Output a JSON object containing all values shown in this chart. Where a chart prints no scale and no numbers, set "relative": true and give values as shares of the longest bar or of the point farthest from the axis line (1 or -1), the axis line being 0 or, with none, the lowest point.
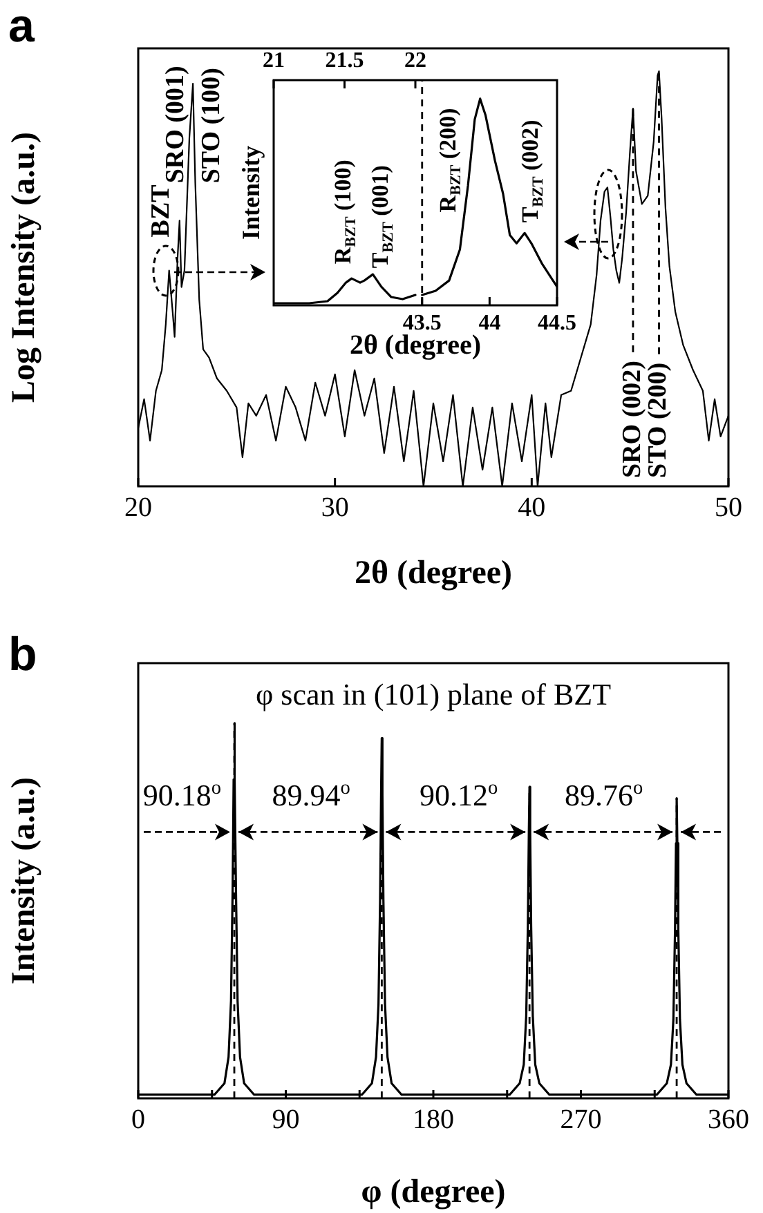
{
  "chart_data": [
    {
      "type": "line",
      "title": "a",
      "xlabel": "2θ (degree)",
      "ylabel": "Log Intensity (a.u.)",
      "relative": true,
      "marker": "none",
      "xlim": [
        20,
        50
      ],
      "xticks": [
        20,
        30,
        40,
        50
      ],
      "series": [
        {
          "color": "#000000",
          "x": [
            20.0,
            20.3,
            20.6,
            20.9,
            21.2,
            21.4,
            21.57,
            21.75,
            21.85,
            22.0,
            22.1,
            22.2,
            22.35,
            22.6,
            22.78,
            22.9,
            23.1,
            23.3,
            23.6,
            24.0,
            24.5,
            25.0,
            25.3,
            25.6,
            26.0,
            26.5,
            27.0,
            27.5,
            28.0,
            28.5,
            29.0,
            29.5,
            30.0,
            30.5,
            31.0,
            31.5,
            32.0,
            32.5,
            33.0,
            33.5,
            34.0,
            34.5,
            35.0,
            35.5,
            36.0,
            36.5,
            37.0,
            37.5,
            38.0,
            38.5,
            39.0,
            39.5,
            40.0,
            40.3,
            40.7,
            41.0,
            41.5,
            42.0,
            42.5,
            43.0,
            43.3,
            43.5,
            43.7,
            43.85,
            44.0,
            44.15,
            44.3,
            44.45,
            44.6,
            44.8,
            45.0,
            45.15,
            45.3,
            45.6,
            45.9,
            46.2,
            46.4,
            46.47,
            46.6,
            46.8,
            47.0,
            47.3,
            47.7,
            48.2,
            48.7,
            49.0,
            49.3,
            49.6,
            50.0
          ],
          "values": [
            0.14,
            0.21,
            0.11,
            0.23,
            0.28,
            0.39,
            0.52,
            0.42,
            0.36,
            0.55,
            0.64,
            0.48,
            0.52,
            0.84,
            0.97,
            0.73,
            0.45,
            0.33,
            0.31,
            0.26,
            0.23,
            0.19,
            0.07,
            0.2,
            0.17,
            0.22,
            0.11,
            0.24,
            0.19,
            0.11,
            0.25,
            0.17,
            0.27,
            0.12,
            0.28,
            0.17,
            0.26,
            0.08,
            0.24,
            0.06,
            0.23,
            0,
            0.2,
            0.06,
            0.22,
            0,
            0.19,
            0.04,
            0.19,
            0,
            0.2,
            0.06,
            0.22,
            0,
            0.2,
            0.07,
            0.22,
            0.23,
            0.31,
            0.39,
            0.51,
            0.64,
            0.71,
            0.72,
            0.65,
            0.57,
            0.52,
            0.49,
            0.55,
            0.66,
            0.81,
            0.91,
            0.76,
            0.68,
            0.7,
            0.83,
            0.99,
            1,
            0.89,
            0.67,
            0.53,
            0.42,
            0.34,
            0.28,
            0.23,
            0.11,
            0.21,
            0.12,
            0.17
          ]
        }
      ],
      "ref_lines": [
        {
          "axis": "x",
          "value": 45.15,
          "line_style": "dashed"
        },
        {
          "axis": "x",
          "value": 46.47,
          "line_style": "dashed"
        }
      ],
      "annotations": [
        "BZT",
        "SRO (001)",
        "STO (100)",
        "SRO (002)",
        "STO (200)"
      ]
    },
    {
      "type": "line",
      "xlabel": "2θ (degree)",
      "ylabel": "Intensity",
      "relative": true,
      "marker": "none",
      "xlim": [
        42.4,
        44.5
      ],
      "xticks": [
        43.5,
        44,
        44.5
      ],
      "x2lim": [
        21,
        23
      ],
      "x2ticks": [
        21,
        21.5,
        22
      ],
      "series": [
        {
          "color": "#000000",
          "axis": "x2",
          "x": [
            21.0,
            21.25,
            21.38,
            21.45,
            21.51,
            21.55,
            21.61,
            21.64,
            21.7,
            21.76,
            21.83,
            21.91,
            22.0
          ],
          "values": [
            0.01,
            0.01,
            0.02,
            0.06,
            0.11,
            0.13,
            0.11,
            0.12,
            0.15,
            0.09,
            0.04,
            0.03,
            0.05
          ]
        },
        {
          "color": "#000000",
          "x": [
            43.5,
            43.6,
            43.7,
            43.78,
            43.84,
            43.89,
            43.93,
            43.95,
            43.97,
            44.04,
            44.1,
            44.15,
            44.2,
            44.26,
            44.31,
            44.39,
            44.5
          ],
          "values": [
            0.05,
            0.07,
            0.12,
            0.27,
            0.58,
            0.9,
            1,
            0.96,
            0.92,
            0.7,
            0.54,
            0.34,
            0.3,
            0.35,
            0.3,
            0.2,
            0.09
          ]
        }
      ],
      "ref_lines": [
        {
          "axis": "x",
          "value": 43.5,
          "line_style": "dashed"
        }
      ],
      "annotations": [
        "R$_{BZT}$ (100)",
        "T$_{BZT}$ (001)",
        "R$_{BZT}$ (200)",
        "T$_{BZT}$ (002)"
      ]
    },
    {
      "type": "line",
      "title": "b",
      "subtitle": "φ scan in (101) plane of BZT",
      "xlabel": "φ (degree)",
      "ylabel": "Intensity (a.u.)",
      "relative": true,
      "marker": "none",
      "xlim": [
        0,
        360
      ],
      "xticks": [
        0,
        {
          "value": 45,
          "label": null
        },
        90,
        {
          "value": 135,
          "label": null
        },
        180,
        {
          "value": 225,
          "label": null
        },
        270,
        {
          "value": 315,
          "label": null
        },
        360
      ],
      "series": [
        {
          "color": "#000000",
          "x": [
            0,
            46.6,
            52.6,
            55.1,
            56.6,
            57.6,
            58.2,
            58.6,
            59.0,
            59.6,
            60.6,
            62.1,
            64.6,
            70.6,
            136.54,
            142.54,
            145.04,
            146.54,
            147.54,
            148.14,
            148.54,
            148.94,
            149.54,
            150.54,
            152.04,
            154.54,
            160.54,
            226.66,
            232.66,
            235.16,
            236.66,
            237.66,
            238.26,
            238.66,
            239.06,
            239.66,
            240.66,
            242.16,
            244.66,
            250.66,
            316.42,
            322.42,
            324.92,
            326.42,
            327.42,
            328.02,
            328.42,
            328.82,
            329.42,
            330.42,
            331.92,
            334.42,
            340.42,
            360
          ],
          "values": [
            0.01,
            0.01,
            0.04,
            0.11,
            0.26,
            0.56,
            0.85,
            1,
            0.85,
            0.56,
            0.26,
            0.11,
            0.04,
            0.01,
            0.01,
            0.04,
            0.11,
            0.25,
            0.53,
            0.81,
            0.96,
            0.81,
            0.53,
            0.25,
            0.11,
            0.04,
            0.01,
            0.01,
            0.04,
            0.09,
            0.22,
            0.46,
            0.71,
            0.83,
            0.71,
            0.46,
            0.22,
            0.09,
            0.04,
            0.01,
            0.01,
            0.04,
            0.09,
            0.21,
            0.45,
            0.68,
            0.8,
            0.68,
            0.45,
            0.21,
            0.09,
            0.04,
            0.01,
            0.01
          ]
        }
      ],
      "ref_lines": [
        {
          "axis": "x",
          "value": 58.6,
          "line_style": "dashed"
        },
        {
          "axis": "x",
          "value": 148.54,
          "line_style": "dashed"
        },
        {
          "axis": "x",
          "value": 238.66,
          "line_style": "dashed"
        },
        {
          "axis": "x",
          "value": 328.42,
          "line_style": "dashed"
        }
      ],
      "annotations": [
        "90.18$^{o}$",
        "89.94$^{o}$",
        "90.12$^{o}$",
        "89.76$^{o}$"
      ]
    }
  ]
}
